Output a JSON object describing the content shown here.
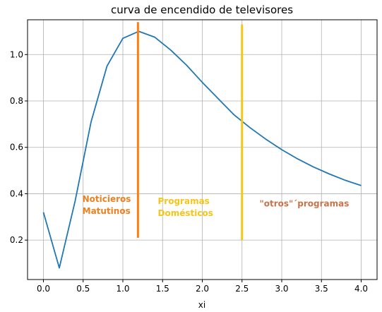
{
  "chart_data": {
    "type": "line",
    "title": "curva de encendido de televisores",
    "xlabel": "xi",
    "ylabel": "",
    "xlim": [
      -0.2,
      4.2
    ],
    "ylim": [
      0.03,
      1.15
    ],
    "xticks": [
      0.0,
      0.5,
      1.0,
      1.5,
      2.0,
      2.5,
      3.0,
      3.5,
      4.0
    ],
    "xtick_labels": [
      "0.0",
      "0.5",
      "1.0",
      "1.5",
      "2.0",
      "2.5",
      "3.0",
      "3.5",
      "4.0"
    ],
    "yticks": [
      0.2,
      0.4,
      0.6,
      0.8,
      1.0
    ],
    "ytick_labels": [
      "0.2",
      "0.4",
      "0.6",
      "0.8",
      "1.0"
    ],
    "grid": true,
    "series": [
      {
        "color": "#1f77b4",
        "x": [
          0.0,
          0.2,
          0.4,
          0.6,
          0.8,
          1.0,
          1.2,
          1.4,
          1.6,
          1.8,
          2.0,
          2.2,
          2.4,
          2.6,
          2.8,
          3.0,
          3.2,
          3.4,
          3.6,
          3.8,
          4.0
        ],
        "y": [
          0.32,
          0.08,
          0.37,
          0.71,
          0.95,
          1.07,
          1.1,
          1.075,
          1.02,
          0.955,
          0.88,
          0.81,
          0.74,
          0.685,
          0.635,
          0.59,
          0.55,
          0.515,
          0.485,
          0.458,
          0.435
        ]
      }
    ],
    "vlines": [
      {
        "x": 1.19,
        "y0": 0.21,
        "y1": 1.14,
        "color": "#ff7f0e"
      },
      {
        "x": 2.5,
        "y0": 0.2,
        "y1": 1.13,
        "color": "#f5c518"
      }
    ],
    "annotations": [
      {
        "lines": [
          "Noticieros",
          "Matutinos"
        ],
        "x": 0.49,
        "y": 0.365,
        "color": "#f07f1e"
      },
      {
        "lines": [
          "Programas",
          "Domésticos"
        ],
        "x": 1.44,
        "y": 0.355,
        "color": "#f5c518"
      },
      {
        "lines": [
          "\"otros\"´programas"
        ],
        "x": 2.72,
        "y": 0.345,
        "color": "#c8734a"
      }
    ]
  }
}
